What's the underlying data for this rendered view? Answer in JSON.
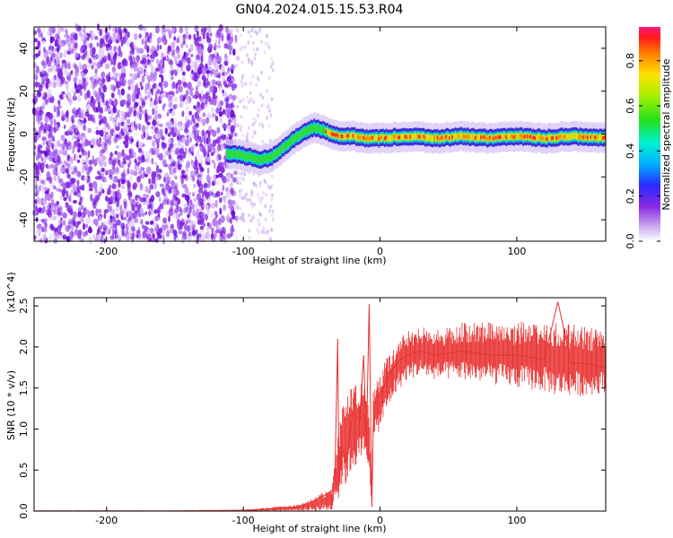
{
  "title": "GN04.2024.015.15.53.R04",
  "chart_data": [
    {
      "type": "heatmap",
      "xlabel": "Height of straight line (km)",
      "ylabel": "Frequency (Hz)",
      "xlim": [
        -253,
        165
      ],
      "ylim": [
        -50,
        50
      ],
      "xticks": [
        -200,
        -100,
        0,
        100
      ],
      "xtick_labels": [
        "-200",
        "-100",
        "0",
        "100"
      ],
      "yticks": [
        -40,
        -20,
        0,
        20,
        40
      ],
      "ytick_labels": [
        "-40",
        "-20",
        "0",
        "20",
        "40"
      ],
      "colorbar": {
        "label": "Normalized spectral amplitude",
        "range": [
          0,
          0.95
        ],
        "ticks": [
          0.0,
          0.2,
          0.4,
          0.6,
          0.8
        ],
        "tick_labels": [
          "0.0",
          "0.2",
          "0.4",
          "0.6",
          "0.8"
        ],
        "colormap": "rainbow"
      },
      "noise_region_x": [
        -253,
        -105
      ],
      "sparse_region_x": [
        -105,
        -78
      ],
      "ridge": {
        "x": [
          -112,
          -100,
          -88,
          -80,
          -72,
          -62,
          -55,
          -48,
          -42,
          -35,
          -28,
          -20,
          -10,
          0,
          20,
          40,
          60,
          80,
          100,
          120,
          140,
          165
        ],
        "freq": [
          -9,
          -10,
          -12,
          -11,
          -7,
          -2,
          1,
          3,
          2,
          0,
          -1,
          -1,
          -2,
          -2,
          -1,
          -2,
          -1,
          -2,
          -1,
          -2,
          -1,
          -2
        ]
      },
      "grid": false,
      "legend": "none"
    },
    {
      "type": "line",
      "xlabel": "Height of straight line (km)",
      "ylabel": "SNR (10 * v/v)",
      "y_multiplier": "(x10^4)",
      "xlim": [
        -253,
        165
      ],
      "ylim": [
        0,
        2.6
      ],
      "xticks": [
        -200,
        -100,
        0,
        100
      ],
      "xtick_labels": [
        "-200",
        "-100",
        "0",
        "100"
      ],
      "yticks": [
        0.0,
        0.5,
        1.0,
        1.5,
        2.0,
        2.5
      ],
      "ytick_labels": [
        "0.0",
        "0.5",
        "1.0",
        "1.5",
        "2.0",
        "2.5"
      ],
      "color": "#e8302f",
      "series": [
        {
          "x": [
            -253,
            -200,
            -150,
            -100,
            -60,
            -45,
            -40,
            -35,
            -33,
            -31,
            -30,
            -28,
            -25,
            -20,
            -15,
            -12,
            -10,
            -8,
            -6,
            -5,
            -3,
            0,
            5,
            10,
            15,
            20,
            30,
            40,
            60,
            80,
            100,
            120,
            130,
            140,
            150,
            165
          ],
          "y": [
            0.0,
            0.0,
            0.0,
            0.0,
            0.05,
            0.15,
            0.2,
            0.25,
            0.45,
            2.1,
            0.3,
            0.8,
            0.6,
            1.2,
            1.1,
            1.9,
            0.8,
            2.52,
            0.05,
            1.0,
            1.4,
            1.4,
            1.6,
            1.75,
            1.85,
            1.9,
            1.95,
            1.9,
            1.95,
            1.9,
            1.9,
            1.85,
            2.55,
            1.8,
            1.8,
            1.75
          ],
          "y_band_low": [
            0.0,
            0.0,
            0.0,
            0.0,
            0.0,
            0.0,
            0.0,
            0.0,
            0.2,
            0.1,
            0.1,
            0.3,
            0.3,
            0.5,
            0.6,
            0.6,
            0.5,
            0.5,
            0.05,
            0.7,
            0.9,
            1.0,
            1.2,
            1.4,
            1.5,
            1.6,
            1.65,
            1.6,
            1.6,
            1.55,
            1.5,
            1.45,
            1.4,
            1.4,
            1.4,
            1.45
          ],
          "y_band_high": [
            0.01,
            0.01,
            0.01,
            0.02,
            0.08,
            0.2,
            0.25,
            0.3,
            0.6,
            1.0,
            1.1,
            1.3,
            1.4,
            1.6,
            1.5,
            1.6,
            1.4,
            1.3,
            0.3,
            1.5,
            1.6,
            1.7,
            1.9,
            2.0,
            2.15,
            2.2,
            2.25,
            2.2,
            2.3,
            2.3,
            2.3,
            2.35,
            2.3,
            2.3,
            2.25,
            2.2
          ]
        }
      ],
      "grid": false,
      "legend": "none"
    }
  ]
}
